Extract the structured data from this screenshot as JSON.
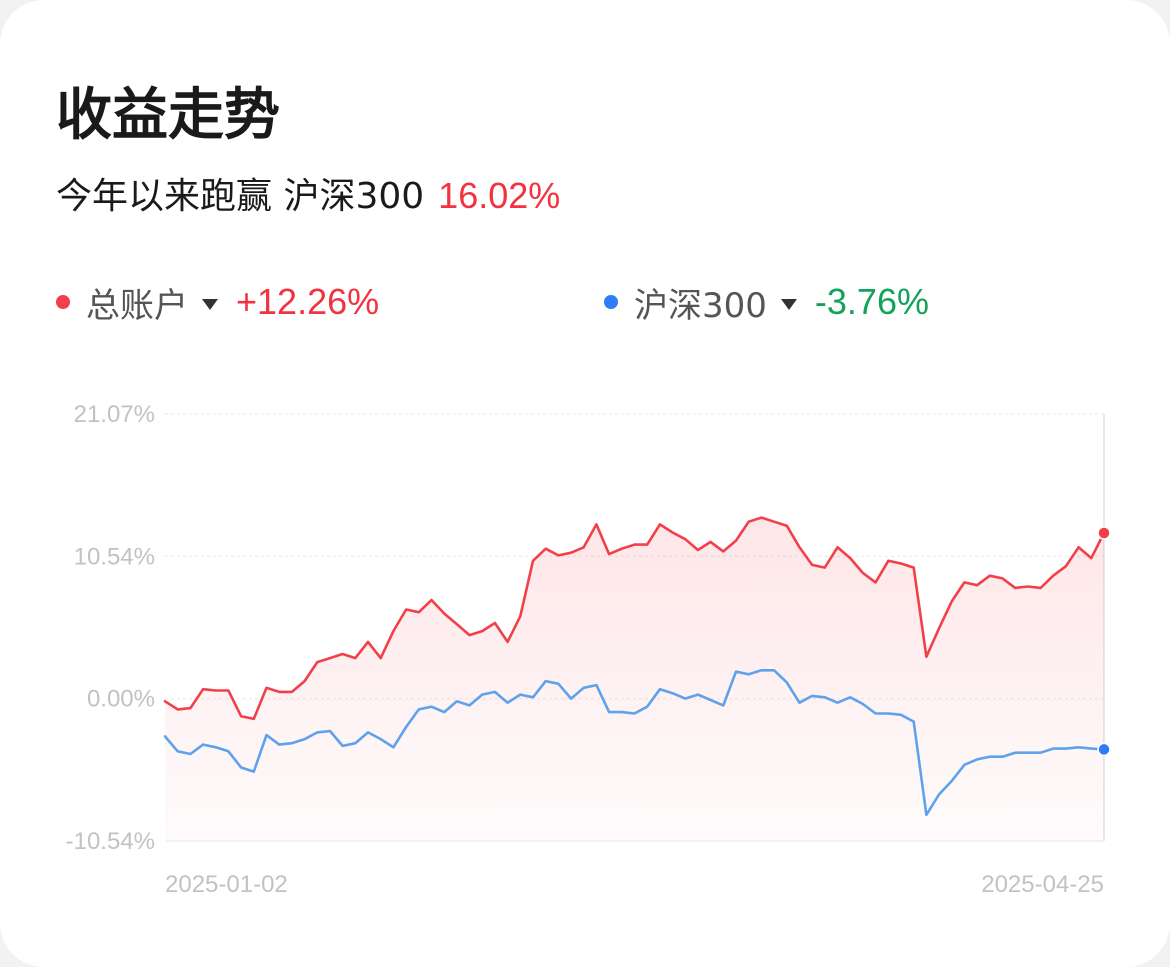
{
  "card": {
    "title": "收益走势",
    "subtitle_text": "今年以来跑赢 沪深300",
    "subtitle_pct": "16.02%"
  },
  "legend": [
    {
      "label": "总账户",
      "value": "+12.26%",
      "dot_color": "#f2404a",
      "value_color": "#f2333f"
    },
    {
      "label": "沪深300",
      "value": "-3.76%",
      "dot_color": "#2e7cf6",
      "value_color": "#12a35a"
    }
  ],
  "chart_data": {
    "type": "line",
    "x_start": "2025-01-02",
    "x_end": "2025-04-25",
    "x_tick_labels": [
      "2025-01-02",
      "2025-04-25"
    ],
    "y_tick_labels": [
      "21.07%",
      "10.54%",
      "0.00%",
      "-10.54%"
    ],
    "ylim": [
      -10.54,
      21.07
    ],
    "grid": true,
    "series": [
      {
        "name": "总账户",
        "color": "#f2404a",
        "values": [
          -0.2,
          -0.8,
          -0.7,
          0.7,
          0.6,
          0.6,
          -1.3,
          -1.5,
          0.8,
          0.5,
          0.5,
          1.3,
          2.7,
          3.0,
          3.3,
          3.0,
          4.2,
          3.0,
          5.0,
          6.6,
          6.4,
          7.3,
          6.3,
          5.5,
          4.7,
          5.0,
          5.6,
          4.2,
          6.1,
          10.2,
          11.1,
          10.6,
          10.8,
          11.2,
          12.9,
          10.7,
          11.1,
          11.4,
          11.4,
          12.9,
          12.3,
          11.8,
          11.0,
          11.6,
          10.9,
          11.7,
          13.1,
          13.4,
          13.1,
          12.8,
          11.2,
          9.9,
          9.7,
          11.2,
          10.4,
          9.3,
          8.6,
          10.2,
          10.0,
          9.7,
          3.1,
          5.2,
          7.2,
          8.6,
          8.4,
          9.1,
          8.9,
          8.2,
          8.3,
          8.2,
          9.1,
          9.8,
          11.2,
          10.4,
          12.26
        ]
      },
      {
        "name": "沪深300",
        "color": "#5ea2ec",
        "values": [
          -2.8,
          -3.9,
          -4.1,
          -3.4,
          -3.6,
          -3.9,
          -5.1,
          -5.4,
          -2.7,
          -3.4,
          -3.3,
          -3.0,
          -2.5,
          -2.4,
          -3.5,
          -3.3,
          -2.5,
          -3.0,
          -3.6,
          -2.1,
          -0.8,
          -0.6,
          -1.0,
          -0.2,
          -0.5,
          0.3,
          0.5,
          -0.3,
          0.3,
          0.1,
          1.3,
          1.1,
          0.0,
          0.8,
          1.0,
          -1.0,
          -1.0,
          -1.1,
          -0.6,
          0.7,
          0.4,
          0.0,
          0.3,
          -0.1,
          -0.5,
          2.0,
          1.8,
          2.1,
          2.1,
          1.2,
          -0.3,
          0.2,
          0.1,
          -0.3,
          0.1,
          -0.4,
          -1.1,
          -1.1,
          -1.2,
          -1.7,
          -8.6,
          -7.1,
          -6.1,
          -4.9,
          -4.5,
          -4.3,
          -4.3,
          -4.0,
          -4.0,
          -4.0,
          -3.7,
          -3.7,
          -3.6,
          -3.7,
          -3.76
        ]
      }
    ]
  }
}
